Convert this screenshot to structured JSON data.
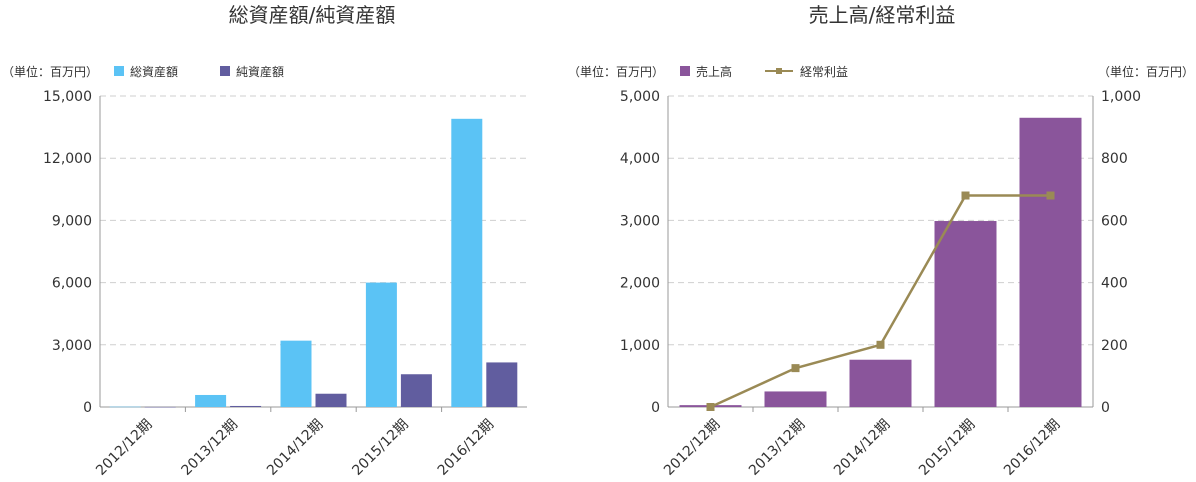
{
  "chart_data": [
    {
      "type": "bar",
      "title": "総資産額/純資産額",
      "unit_label": "（単位：百万円）",
      "categories": [
        "2012/12期",
        "2013/12期",
        "2014/12期",
        "2015/12期",
        "2016/12期"
      ],
      "series": [
        {
          "name": "総資産額",
          "color": "#5bc3f5",
          "values": [
            15,
            580,
            3200,
            6000,
            13900
          ]
        },
        {
          "name": "純資産額",
          "color": "#615d9f",
          "values": [
            5,
            50,
            640,
            1580,
            2150
          ]
        }
      ],
      "ylim": [
        0,
        15000
      ],
      "yticks": [
        "0",
        "3,000",
        "6,000",
        "9,000",
        "12,000",
        "15,000"
      ],
      "grid": true,
      "legend_position": "top-left"
    },
    {
      "type": "bar+line",
      "title": "売上高/経常利益",
      "unit_label_left": "（単位：百万円）",
      "unit_label_right": "（単位：百万円）",
      "categories": [
        "2012/12期",
        "2013/12期",
        "2014/12期",
        "2015/12期",
        "2016/12期"
      ],
      "series": [
        {
          "name": "売上高",
          "kind": "bar",
          "axis": "left",
          "color": "#8a559b",
          "values": [
            30,
            250,
            760,
            2990,
            4650
          ]
        },
        {
          "name": "経常利益",
          "kind": "line",
          "axis": "right",
          "color": "#9a8a55",
          "values": [
            0,
            125,
            200,
            680,
            680
          ]
        }
      ],
      "ylim_left": [
        0,
        5000
      ],
      "yticks_left": [
        "0",
        "1,000",
        "2,000",
        "3,000",
        "4,000",
        "5,000"
      ],
      "ylim_right": [
        0,
        1000
      ],
      "yticks_right": [
        "0",
        "200",
        "400",
        "600",
        "800",
        "1,000"
      ],
      "grid": true,
      "legend_position": "top-left"
    }
  ]
}
